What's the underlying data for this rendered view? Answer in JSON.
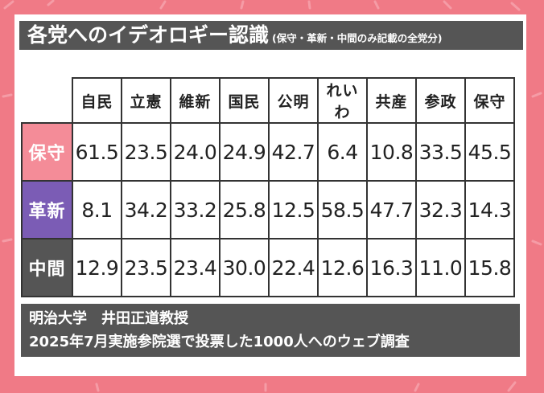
{
  "title": "各党へのイデオロギー認識",
  "subtitle": "(保守・革新・中間のみ記載の全党分)",
  "colors": {
    "background": "#f07a86",
    "title_bar": "#555555",
    "conservative": "#f48c98",
    "progressive": "#7b5cb5",
    "centrist": "#555555"
  },
  "chart_data": {
    "type": "table",
    "title": "各党へのイデオロギー認識",
    "subtitle": "(保守・革新・中間のみ記載の全党分)",
    "columns": [
      "自民",
      "立憲",
      "維新",
      "国民",
      "公明",
      "れいわ",
      "共産",
      "参政",
      "保守"
    ],
    "rows": [
      {
        "label": "保守",
        "values": [
          "61.5",
          "23.5",
          "24.0",
          "24.9",
          "42.7",
          "6.4",
          "10.8",
          "33.5",
          "45.5"
        ]
      },
      {
        "label": "革新",
        "values": [
          "8.1",
          "34.2",
          "33.2",
          "25.8",
          "12.5",
          "58.5",
          "47.7",
          "32.3",
          "14.3"
        ]
      },
      {
        "label": "中間",
        "values": [
          "12.9",
          "23.5",
          "23.4",
          "30.0",
          "22.4",
          "12.6",
          "16.3",
          "11.0",
          "15.8"
        ]
      }
    ]
  },
  "footer": {
    "line1": "明治大学　井田正道教授",
    "line2": "2025年7月実施参院選で投票した1000人へのウェブ調査"
  }
}
